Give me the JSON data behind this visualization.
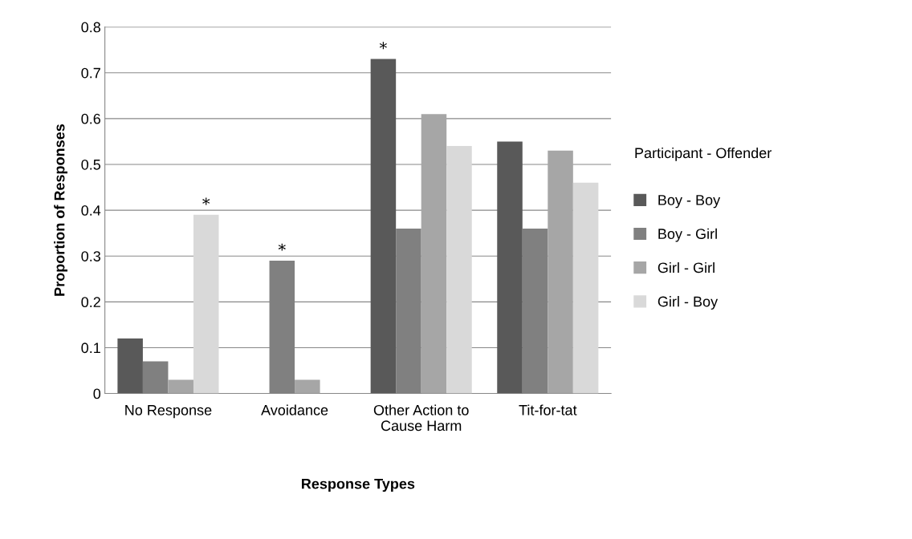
{
  "chart_data": {
    "type": "bar",
    "xlabel": "Response Types",
    "ylabel": "Proportion of Responses",
    "categories": [
      "No Response",
      "Avoidance",
      "Other Action to\nCause Harm",
      "Tit-for-tat"
    ],
    "series": [
      {
        "name": "Boy - Boy",
        "color": "#595959",
        "values": [
          0.12,
          0,
          0.73,
          0.55
        ],
        "value_labels": [
          null,
          null,
          "*",
          null
        ]
      },
      {
        "name": "Boy - Girl",
        "color": "#808080",
        "values": [
          0.07,
          0.29,
          0.36,
          0.36
        ],
        "value_labels": [
          null,
          "*",
          null,
          null
        ]
      },
      {
        "name": "Girl - Girl",
        "color": "#a6a6a6",
        "values": [
          0.03,
          0.03,
          0.61,
          0.53
        ]
      },
      {
        "name": "Girl - Boy",
        "color": "#d9d9d9",
        "values": [
          0.39,
          0,
          0.54,
          0.46
        ],
        "value_labels": [
          "*",
          null,
          null,
          null
        ]
      }
    ],
    "ylim": [
      0,
      0.8
    ],
    "yticks": [
      0,
      0.1,
      0.2,
      0.3,
      0.4,
      0.5,
      0.6,
      0.7,
      0.8
    ],
    "grid": "y",
    "legend": "right",
    "legend_title": "Participant - Offender"
  }
}
